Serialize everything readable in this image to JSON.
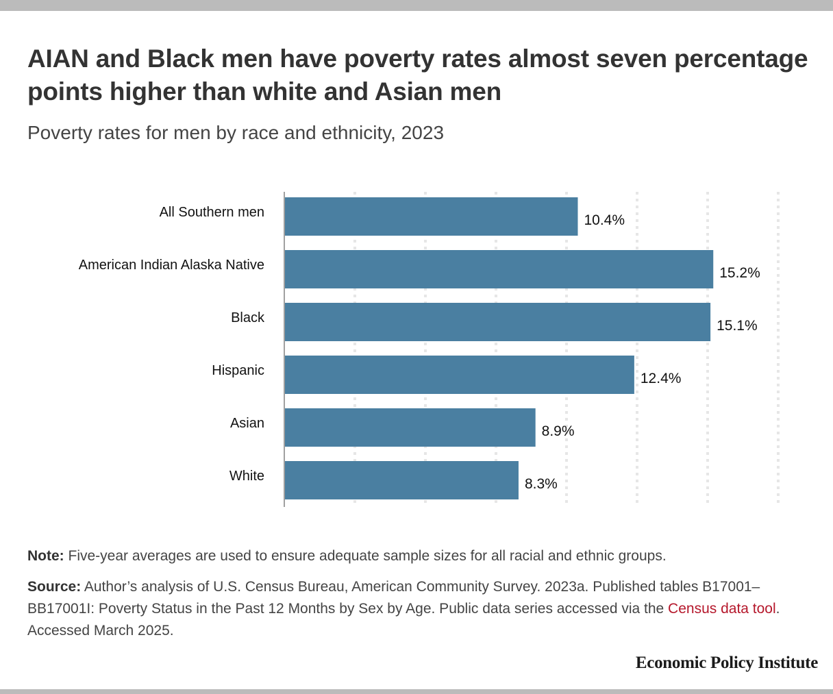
{
  "header": {
    "title": "AIAN and Black men have poverty rates almost seven percentage points higher than white and Asian men",
    "subtitle": "Poverty rates for men by race and ethnicity, 2023"
  },
  "chart_data": {
    "type": "bar",
    "orientation": "horizontal",
    "title": "AIAN and Black men have poverty rates almost seven percentage points higher than white and Asian men",
    "subtitle": "Poverty rates for men by race and ethnicity, 2023",
    "categories": [
      "All Southern men",
      "American Indian Alaska Native",
      "Black",
      "Hispanic",
      "Asian",
      "White"
    ],
    "values": [
      10.4,
      15.2,
      15.1,
      12.4,
      8.9,
      8.3
    ],
    "value_labels": [
      "10.4%",
      "15.2%",
      "15.1%",
      "12.4%",
      "8.9%",
      "8.3%"
    ],
    "xlabel": "",
    "ylabel": "",
    "xlim": [
      0,
      17.5
    ],
    "gridline_step": 2.5,
    "grid": true,
    "axis_tick_labels_shown": false,
    "bar_color": "#4a7fa1",
    "legend": "none"
  },
  "footer": {
    "note_label": "Note:",
    "note_text": " Five-year averages are used to ensure adequate sample sizes for all racial and ethnic groups.",
    "source_label": "Source:",
    "source_text_1": " Author’s analysis of U.S. Census Bureau, American Community Survey. 2023a. Published tables B17001–BB17001I: Poverty Status in the Past 12 Months by Sex by Age. Public data series accessed via the ",
    "source_link": "Census data tool",
    "source_text_2": ". Accessed March 2025.",
    "link_color": "#b5172b",
    "brand": "Economic Policy Institute"
  }
}
